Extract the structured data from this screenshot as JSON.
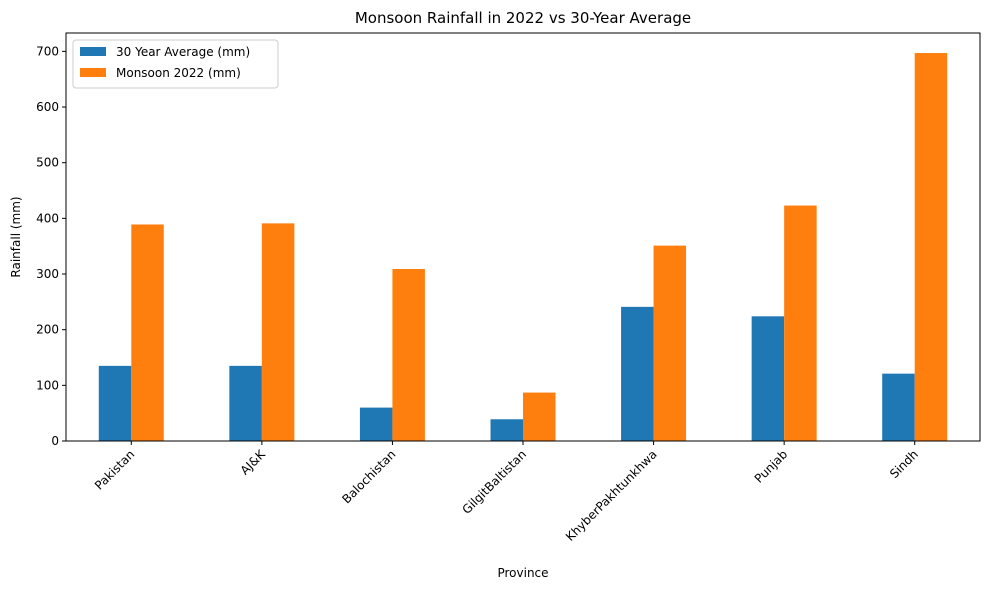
{
  "chart_data": {
    "type": "bar",
    "title": "Monsoon Rainfall in 2022 vs 30-Year Average",
    "xlabel": "Province",
    "ylabel": "Rainfall (mm)",
    "categories": [
      "Pakistan",
      "AJ&K",
      "Balochistan",
      "GilgitBaltistan",
      "KhyberPakhtunkhwa",
      "Punjab",
      "Sindh"
    ],
    "series": [
      {
        "name": "30 Year Average (mm)",
        "color": "#1f77b4",
        "values": [
          135,
          135,
          60,
          39,
          241,
          224,
          121
        ]
      },
      {
        "name": "Monsoon 2022 (mm)",
        "color": "#ff7f0e",
        "values": [
          389,
          391,
          309,
          87,
          351,
          423,
          697
        ]
      }
    ],
    "ylim": [
      0,
      733
    ],
    "yticks": [
      0,
      100,
      200,
      300,
      400,
      500,
      600,
      700
    ],
    "grid": false,
    "legend": "top-left"
  }
}
